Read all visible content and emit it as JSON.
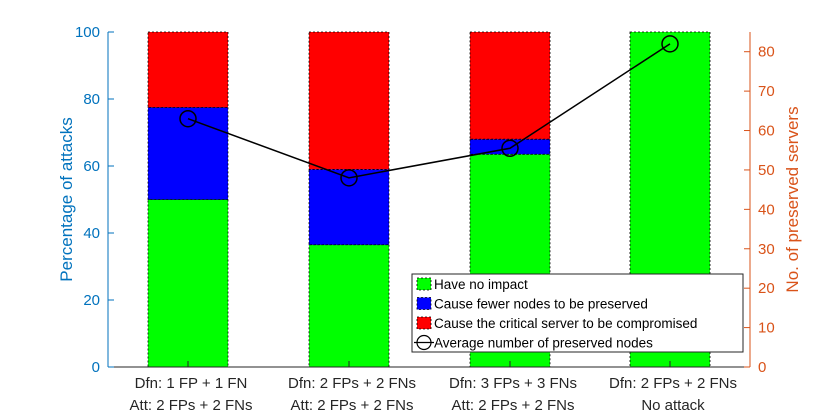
{
  "chart_data": {
    "type": "bar",
    "stacked": true,
    "categories": [
      [
        "Dfn: 1 FP + 1 FN",
        "Att: 2 FPs + 2 FNs"
      ],
      [
        "Dfn: 2 FPs + 2 FNs",
        "Att: 2 FPs + 2 FNs"
      ],
      [
        "Dfn: 3 FPs + 3 FNs",
        "Att: 2 FPs + 2 FNs"
      ],
      [
        "Dfn: 2 FPs + 2 FNs",
        "No attack"
      ]
    ],
    "series": [
      {
        "name": "Have no impact",
        "color": "#00ff00",
        "values": [
          50,
          36.5,
          63.5,
          100
        ]
      },
      {
        "name": "Cause fewer nodes to be preserved",
        "color": "#0000ff",
        "values": [
          27.5,
          22.5,
          4.5,
          0
        ]
      },
      {
        "name": "Cause the critical server to be compromised",
        "color": "#ff0000",
        "values": [
          22.5,
          41,
          32,
          0
        ]
      }
    ],
    "line_series": {
      "name": "Average number of preserved nodes",
      "axis": "right",
      "color": "#000000",
      "values": [
        63,
        48,
        55.5,
        82
      ]
    },
    "ylabel": "Percentage of attacks",
    "ylabel_right": "No. of preserved servers",
    "ylim": [
      0,
      100
    ],
    "ylim_right": [
      0,
      85
    ],
    "yticks": [
      0,
      20,
      40,
      60,
      80,
      100
    ],
    "yticks_right": [
      0,
      10,
      20,
      30,
      40,
      50,
      60,
      70,
      80
    ],
    "left_axis_color": "#0072bd",
    "right_axis_color": "#d95319",
    "legend_position": "bottom-right"
  }
}
